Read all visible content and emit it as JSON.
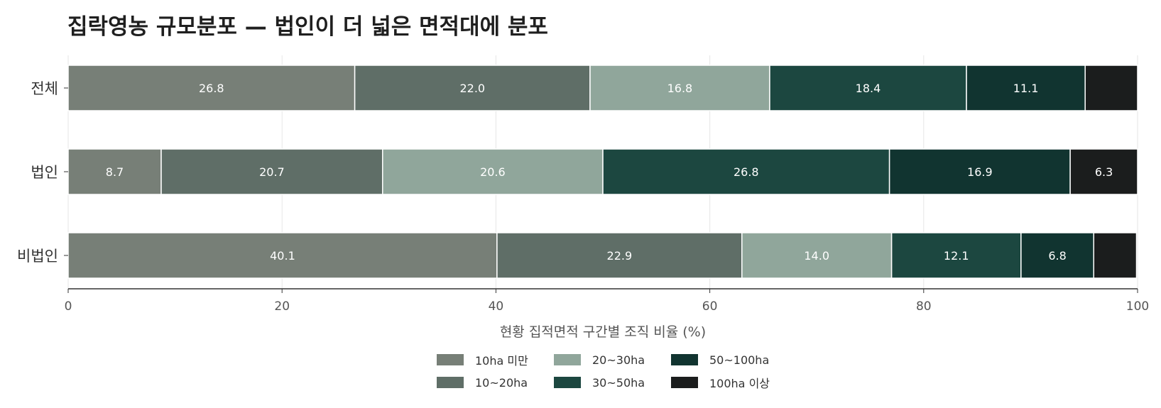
{
  "chart_data": {
    "type": "bar",
    "orientation": "horizontal",
    "stacked": true,
    "title": "집락영농 규모분포 — 법인이 더 넓은 면적대에 분포",
    "xlabel": "현황 집적면적 구간별 조직 비율 (%)",
    "ylabel": "",
    "xlim": [
      0,
      100
    ],
    "xticks": [
      "0",
      "20",
      "40",
      "60",
      "80",
      "100"
    ],
    "categories": [
      "전체",
      "법인",
      "비법인"
    ],
    "series": [
      {
        "name": "10ha 미만",
        "color": "#777f77",
        "values": [
          26.8,
          8.7,
          40.1
        ],
        "labels": [
          "26.8",
          "8.7",
          "40.1"
        ]
      },
      {
        "name": "10~20ha",
        "color": "#5f6e67",
        "values": [
          22.0,
          20.7,
          22.9
        ],
        "labels": [
          "22.0",
          "20.7",
          "22.9"
        ]
      },
      {
        "name": "20~30ha",
        "color": "#90a69b",
        "values": [
          16.8,
          20.6,
          14.0
        ],
        "labels": [
          "16.8",
          "20.6",
          "14.0"
        ]
      },
      {
        "name": "30~50ha",
        "color": "#1c4740",
        "values": [
          18.4,
          26.8,
          12.1
        ],
        "labels": [
          "18.4",
          "26.8",
          "12.1"
        ]
      },
      {
        "name": "50~100ha",
        "color": "#113430",
        "values": [
          11.1,
          16.9,
          6.8
        ],
        "labels": [
          "11.1",
          "16.9",
          "6.8"
        ]
      },
      {
        "name": "100ha 이상",
        "color": "#1b1d1d",
        "values": [
          4.9,
          6.3,
          4.0
        ],
        "labels": [
          "",
          "6.3",
          ""
        ]
      }
    ],
    "grid": true,
    "legend_position": "bottom-center"
  }
}
